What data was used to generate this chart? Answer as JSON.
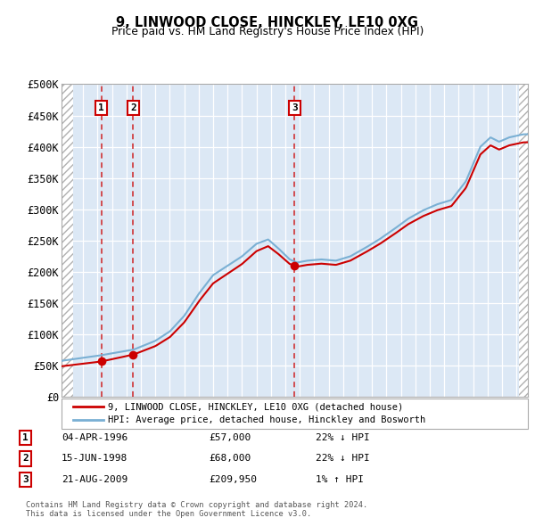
{
  "title": "9, LINWOOD CLOSE, HINCKLEY, LE10 0XG",
  "subtitle": "Price paid vs. HM Land Registry's House Price Index (HPI)",
  "ylim": [
    0,
    500000
  ],
  "yticks": [
    0,
    50000,
    100000,
    150000,
    200000,
    250000,
    300000,
    350000,
    400000,
    450000,
    500000
  ],
  "ytick_labels": [
    "£0",
    "£50K",
    "£100K",
    "£150K",
    "£200K",
    "£250K",
    "£300K",
    "£350K",
    "£400K",
    "£450K",
    "£500K"
  ],
  "xlim_start": 1993.5,
  "xlim_end": 2025.8,
  "sale_dates": [
    1996.26,
    1998.46,
    2009.64
  ],
  "sale_prices": [
    57000,
    68000,
    209950
  ],
  "sale_labels": [
    "1",
    "2",
    "3"
  ],
  "hpi_line_color": "#7ab0d4",
  "price_line_color": "#cc0000",
  "sale_dot_color": "#cc0000",
  "dashed_line_color": "#cc0000",
  "legend_entries": [
    "9, LINWOOD CLOSE, HINCKLEY, LE10 0XG (detached house)",
    "HPI: Average price, detached house, Hinckley and Bosworth"
  ],
  "table_rows": [
    [
      "1",
      "04-APR-1996",
      "£57,000",
      "22% ↓ HPI"
    ],
    [
      "2",
      "15-JUN-1998",
      "£68,000",
      "22% ↓ HPI"
    ],
    [
      "3",
      "21-AUG-2009",
      "£209,950",
      "1% ↑ HPI"
    ]
  ],
  "footnote": "Contains HM Land Registry data © Crown copyright and database right 2024.\nThis data is licensed under the Open Government Licence v3.0.",
  "plot_bg_color": "#dce8f5",
  "grid_color": "#ffffff",
  "hatch_color": "#c8c8c8"
}
